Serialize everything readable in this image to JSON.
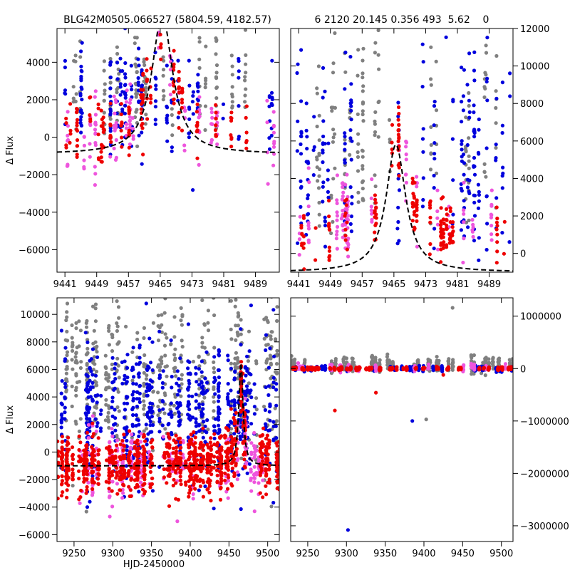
{
  "title_left": "BLG42M0505.066527 (5804.59, 4182.57)",
  "title_right": "6 2120 20.145 0.356 493  5.62    0",
  "colors": {
    "gray": "#808080",
    "blue": "#0000dd",
    "pink": "#ee55dd",
    "red": "#ee0000",
    "model": "#000000"
  },
  "chart_data": [
    {
      "id": "top-left",
      "type": "scatter",
      "xlabel": "",
      "ylabel": "Δ Flux",
      "xlim": [
        9439,
        9495
      ],
      "ylim": [
        -7200,
        5800
      ],
      "xticks": [
        9441,
        9449,
        9457,
        9465,
        9473,
        9481,
        9489
      ],
      "xtick_labels": [
        "9441",
        "9449",
        "9457",
        "9465",
        "9473",
        "9481",
        "9489"
      ],
      "yticks": [
        -6000,
        -4000,
        -2000,
        0,
        2000,
        4000
      ],
      "ytick_labels": [
        "−6000",
        "−4000",
        "−2000",
        "0",
        "2000",
        "4000"
      ],
      "y_axis_side": "left",
      "model_curve": {
        "baseline": -900,
        "peak": 6500,
        "t0": 9465.5,
        "tau": 3.2
      },
      "series": [
        {
          "name": "gray",
          "color_key": "gray",
          "count": 150,
          "ycenter": 2800,
          "yspread": 2600,
          "seed": 11
        },
        {
          "name": "blue",
          "color_key": "blue",
          "count": 190,
          "ycenter": 2000,
          "yspread": 2600,
          "seed": 12
        },
        {
          "name": "pink",
          "color_key": "pink",
          "count": 130,
          "ycenter": 0,
          "yspread": 1800,
          "seed": 13
        },
        {
          "name": "red",
          "color_key": "red",
          "count": 180,
          "ycenter": 200,
          "yspread": 1500,
          "seed": 14
        }
      ]
    },
    {
      "id": "top-right",
      "type": "scatter",
      "xlabel": "",
      "ylabel": "",
      "xlim": [
        9439,
        9495
      ],
      "ylim": [
        -1000,
        12000
      ],
      "xticks": [
        9441,
        9449,
        9457,
        9465,
        9473,
        9481,
        9489
      ],
      "xtick_labels": [
        "9441",
        "9449",
        "9457",
        "9465",
        "9473",
        "9481",
        "9489"
      ],
      "yticks": [
        0,
        2000,
        4000,
        6000,
        8000,
        10000,
        12000
      ],
      "ytick_labels": [
        "0",
        "2000",
        "4000",
        "6000",
        "8000",
        "10000",
        "12000"
      ],
      "y_axis_side": "right",
      "model_curve": {
        "baseline": -1000,
        "peak": 5800,
        "t0": 9465.5,
        "tau": 3.0
      },
      "series": [
        {
          "name": "gray",
          "color_key": "gray",
          "count": 160,
          "ycenter": 6000,
          "yspread": 4500,
          "seed": 21
        },
        {
          "name": "blue",
          "color_key": "blue",
          "count": 230,
          "ycenter": 5000,
          "yspread": 4800,
          "seed": 22
        },
        {
          "name": "pink",
          "color_key": "pink",
          "count": 120,
          "ycenter": 1500,
          "yspread": 1600,
          "seed": 23
        },
        {
          "name": "red",
          "color_key": "red",
          "count": 180,
          "ycenter": 900,
          "yspread": 1300,
          "seed": 24
        }
      ]
    },
    {
      "id": "bottom-left",
      "type": "scatter",
      "xlabel": "HJD-2450000",
      "ylabel": "Δ Flux",
      "xlim": [
        9228,
        9515
      ],
      "ylim": [
        -6500,
        11200
      ],
      "xticks": [
        9250,
        9300,
        9350,
        9400,
        9450,
        9500
      ],
      "xtick_labels": [
        "9250",
        "9300",
        "9350",
        "9400",
        "9450",
        "9500"
      ],
      "yticks": [
        -6000,
        -4000,
        -2000,
        0,
        2000,
        4000,
        6000,
        8000,
        10000
      ],
      "ytick_labels": [
        "−6000",
        "−4000",
        "−2000",
        "0",
        "2000",
        "4000",
        "6000",
        "8000",
        "10000"
      ],
      "y_axis_side": "left",
      "model_curve": {
        "baseline": -1000,
        "peak": 6500,
        "t0": 9465.5,
        "tau": 3.2
      },
      "series": [
        {
          "name": "gray",
          "color_key": "gray",
          "count": 520,
          "ycenter": 6000,
          "yspread": 5000,
          "seed": 31
        },
        {
          "name": "blue",
          "color_key": "blue",
          "count": 650,
          "ycenter": 3000,
          "yspread": 4000,
          "seed": 32
        },
        {
          "name": "pink",
          "color_key": "pink",
          "count": 280,
          "ycenter": -1000,
          "yspread": 2000,
          "seed": 33
        },
        {
          "name": "red",
          "color_key": "red",
          "count": 1000,
          "ycenter": -800,
          "yspread": 1700,
          "seed": 34
        }
      ]
    },
    {
      "id": "bottom-right",
      "type": "scatter",
      "xlabel": "",
      "ylabel": "",
      "xlim": [
        9228,
        9515
      ],
      "ylim": [
        -3300000,
        1350000
      ],
      "xticks": [
        9250,
        9300,
        9350,
        9400,
        9450,
        9500
      ],
      "xtick_labels": [
        "9250",
        "9300",
        "9350",
        "9400",
        "9450",
        "9500"
      ],
      "yticks": [
        -3000000,
        -2000000,
        -1000000,
        0,
        1000000
      ],
      "ytick_labels": [
        "−3000000",
        "−2000000",
        "−1000000",
        "0",
        "1000000"
      ],
      "y_axis_side": "right",
      "model_curve": null,
      "series": [
        {
          "name": "gray",
          "color_key": "gray",
          "count": 320,
          "ycenter": 80000,
          "yspread": 120000,
          "seed": 41
        },
        {
          "name": "blue",
          "color_key": "blue",
          "count": 280,
          "ycenter": 0,
          "yspread": 40000,
          "seed": 42
        },
        {
          "name": "pink",
          "color_key": "pink",
          "count": 120,
          "ycenter": 20000,
          "yspread": 60000,
          "seed": 43
        },
        {
          "name": "red",
          "color_key": "red",
          "count": 420,
          "ycenter": 0,
          "yspread": 25000,
          "seed": 44
        }
      ],
      "outliers": [
        {
          "x": 9285,
          "y": -800000,
          "color_key": "red"
        },
        {
          "x": 9302,
          "y": -3080000,
          "color_key": "blue"
        },
        {
          "x": 9385,
          "y": -1000000,
          "color_key": "blue"
        },
        {
          "x": 9403,
          "y": -970000,
          "color_key": "gray"
        },
        {
          "x": 9338,
          "y": -460000,
          "color_key": "red"
        },
        {
          "x": 9425,
          "y": -120000,
          "color_key": "red"
        },
        {
          "x": 9437,
          "y": 1160000,
          "color_key": "gray"
        }
      ]
    }
  ]
}
